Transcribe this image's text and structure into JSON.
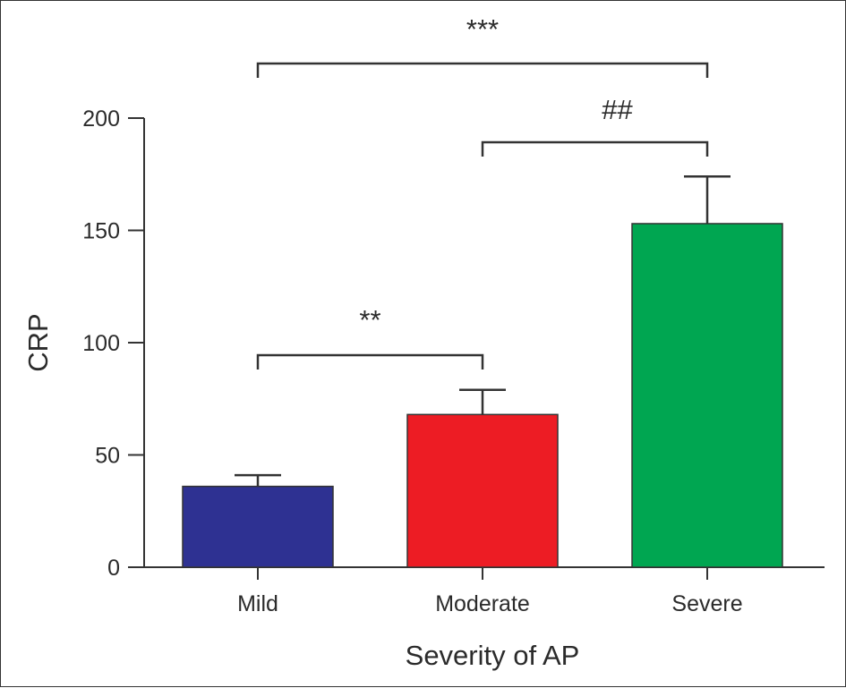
{
  "chart_data": {
    "type": "bar",
    "categories": [
      "Mild",
      "Moderate",
      "Severe"
    ],
    "values": [
      36,
      68,
      153
    ],
    "error_upper": [
      41,
      79,
      174
    ],
    "colors": [
      "#2e3192",
      "#ed1c24",
      "#00a651"
    ],
    "xlabel": "Severity of AP",
    "ylabel": "CRP",
    "ylim": [
      0,
      200
    ],
    "yticks": [
      0,
      50,
      100,
      150,
      200
    ],
    "grid": false,
    "annotations": [
      {
        "label": "***",
        "from": "Mild",
        "to": "Severe"
      },
      {
        "label": "##",
        "from": "Moderate",
        "to": "Severe"
      },
      {
        "label": "**",
        "from": "Mild",
        "to": "Moderate"
      }
    ]
  }
}
